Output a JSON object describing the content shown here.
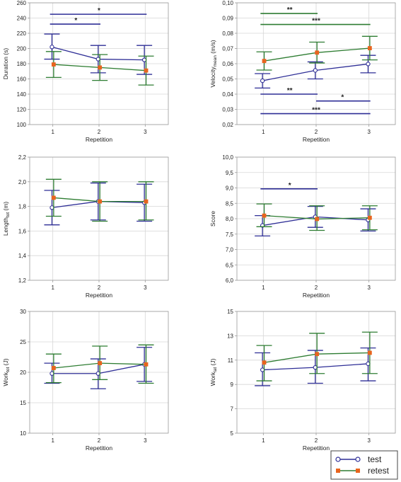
{
  "colors": {
    "test": "#2e2e96",
    "retest": "#2e7d32",
    "retest_marker": "#e8641e",
    "grid": "#d6d6d6",
    "frame": "#9a9a9a"
  },
  "legend": {
    "items": [
      {
        "key": "test",
        "label": "test",
        "marker": "circle"
      },
      {
        "key": "retest",
        "label": "retest",
        "marker": "square"
      }
    ]
  },
  "chart_data": [
    {
      "type": "line",
      "id": "duration",
      "title": "",
      "xlabel": "Repetition",
      "ylabel": {
        "main": "Duration",
        "sub": "",
        "unit": " (s)"
      },
      "x": [
        1,
        2,
        3
      ],
      "ylim": [
        100,
        260
      ],
      "yticks": [
        "100",
        "120",
        "140",
        "160",
        "180",
        "200",
        "220",
        "240",
        "260"
      ],
      "series": [
        {
          "name": "test",
          "values": [
            202,
            186,
            185
          ],
          "lower": [
            186,
            168,
            166
          ],
          "upper": [
            219,
            204,
            204
          ]
        },
        {
          "name": "retest",
          "values": [
            179,
            175,
            171
          ],
          "upper": [
            196,
            192,
            190
          ],
          "lower": [
            162,
            158,
            152
          ]
        }
      ],
      "annotations": [
        {
          "x1": 1,
          "x2": 3,
          "y": 245,
          "label": "*",
          "color": "test"
        },
        {
          "x1": 1,
          "x2": 2,
          "y": 232,
          "label": "*",
          "color": "test"
        }
      ]
    },
    {
      "type": "line",
      "id": "velocity",
      "title": "",
      "xlabel": "Repetition",
      "ylabel": {
        "main": "Velocity",
        "sub": "mean",
        "unit": " (m/s)"
      },
      "x": [
        1,
        2,
        3
      ],
      "ylim": [
        0.02,
        0.1
      ],
      "yticks": [
        "0,02",
        "0,03",
        "0,04",
        "0,05",
        "0,06",
        "0,07",
        "0,08",
        "0,09",
        "0,10"
      ],
      "series": [
        {
          "name": "test",
          "values": [
            0.0488,
            0.0556,
            0.0598
          ],
          "lower": [
            0.044,
            0.05,
            0.054
          ],
          "upper": [
            0.0535,
            0.0612,
            0.0655
          ]
        },
        {
          "name": "retest",
          "values": [
            0.0618,
            0.0673,
            0.0702
          ],
          "upper": [
            0.0678,
            0.0742,
            0.078
          ],
          "lower": [
            0.0558,
            0.0605,
            0.0625
          ]
        }
      ],
      "annotations": [
        {
          "x1": 1,
          "x2": 2,
          "y": 0.093,
          "label": "**",
          "color": "retest"
        },
        {
          "x1": 1,
          "x2": 3,
          "y": 0.0858,
          "label": "***",
          "color": "retest"
        },
        {
          "x1": 1,
          "x2": 2,
          "y": 0.04,
          "label": "**",
          "color": "test"
        },
        {
          "x1": 2,
          "x2": 3,
          "y": 0.0355,
          "label": "*",
          "color": "test"
        },
        {
          "x1": 1,
          "x2": 3,
          "y": 0.0272,
          "label": "***",
          "color": "test"
        }
      ]
    },
    {
      "type": "line",
      "id": "length",
      "title": "",
      "xlabel": "Repetition",
      "ylabel": {
        "main": "Length",
        "sub": "tot",
        "unit": " (m)"
      },
      "x": [
        1,
        2,
        3
      ],
      "ylim": [
        1.2,
        2.2
      ],
      "yticks": [
        "1,2",
        "1,4",
        "1,6",
        "1,8",
        "2,0",
        "2,2"
      ],
      "series": [
        {
          "name": "test",
          "values": [
            1.79,
            1.84,
            1.83
          ],
          "lower": [
            1.65,
            1.69,
            1.68
          ],
          "upper": [
            1.93,
            1.99,
            1.98
          ]
        },
        {
          "name": "retest",
          "values": [
            1.87,
            1.84,
            1.84
          ],
          "upper": [
            2.02,
            2.0,
            2.0
          ],
          "lower": [
            1.72,
            1.68,
            1.69
          ]
        }
      ],
      "annotations": []
    },
    {
      "type": "line",
      "id": "score",
      "title": "",
      "xlabel": "Repetition",
      "ylabel": {
        "main": "Score",
        "sub": "",
        "unit": ""
      },
      "x": [
        1,
        2,
        3
      ],
      "ylim": [
        6.0,
        10.0
      ],
      "yticks": [
        "6,0",
        "6,5",
        "7,0",
        "7,5",
        "8,0",
        "8,5",
        "9,0",
        "9,5",
        "10,0"
      ],
      "series": [
        {
          "name": "test",
          "values": [
            7.78,
            8.06,
            7.96
          ],
          "lower": [
            7.44,
            7.72,
            7.6
          ],
          "upper": [
            8.1,
            8.4,
            8.32
          ]
        },
        {
          "name": "retest",
          "values": [
            8.1,
            7.99,
            8.03
          ],
          "upper": [
            8.48,
            8.42,
            8.42
          ],
          "lower": [
            7.74,
            7.62,
            7.64
          ]
        }
      ],
      "annotations": [
        {
          "x1": 1,
          "x2": 2,
          "y": 8.97,
          "label": "*",
          "color": "test"
        }
      ]
    },
    {
      "type": "line",
      "id": "worktot",
      "title": "",
      "xlabel": "Repetition",
      "ylabel": {
        "main": "Work",
        "sub": "tot",
        "unit": " (J)"
      },
      "x": [
        1,
        2,
        3
      ],
      "ylim": [
        10,
        30
      ],
      "yticks": [
        "10",
        "15",
        "20",
        "25",
        "30"
      ],
      "series": [
        {
          "name": "test",
          "values": [
            19.8,
            19.8,
            21.3
          ],
          "lower": [
            18.2,
            17.3,
            18.5
          ],
          "upper": [
            21.5,
            22.2,
            24.1
          ]
        },
        {
          "name": "retest",
          "values": [
            20.7,
            21.5,
            21.3
          ],
          "upper": [
            23.0,
            24.3,
            24.5
          ],
          "lower": [
            18.3,
            18.8,
            18.2
          ]
        }
      ],
      "annotations": []
    },
    {
      "type": "line",
      "id": "worklat",
      "title": "",
      "xlabel": "Repetition",
      "ylabel": {
        "main": "Work",
        "sub": "lat",
        "unit": " (J)"
      },
      "x": [
        1,
        2,
        3
      ],
      "ylim": [
        5,
        15
      ],
      "yticks": [
        "5",
        "7",
        "9",
        "11",
        "13",
        "15"
      ],
      "series": [
        {
          "name": "test",
          "values": [
            10.2,
            10.4,
            10.7
          ],
          "lower": [
            8.9,
            9.1,
            9.3
          ],
          "upper": [
            11.6,
            11.8,
            12.0
          ]
        },
        {
          "name": "retest",
          "values": [
            10.8,
            11.5,
            11.6
          ],
          "upper": [
            12.2,
            13.2,
            13.3
          ],
          "lower": [
            9.3,
            9.9,
            9.9
          ]
        }
      ],
      "annotations": []
    }
  ]
}
